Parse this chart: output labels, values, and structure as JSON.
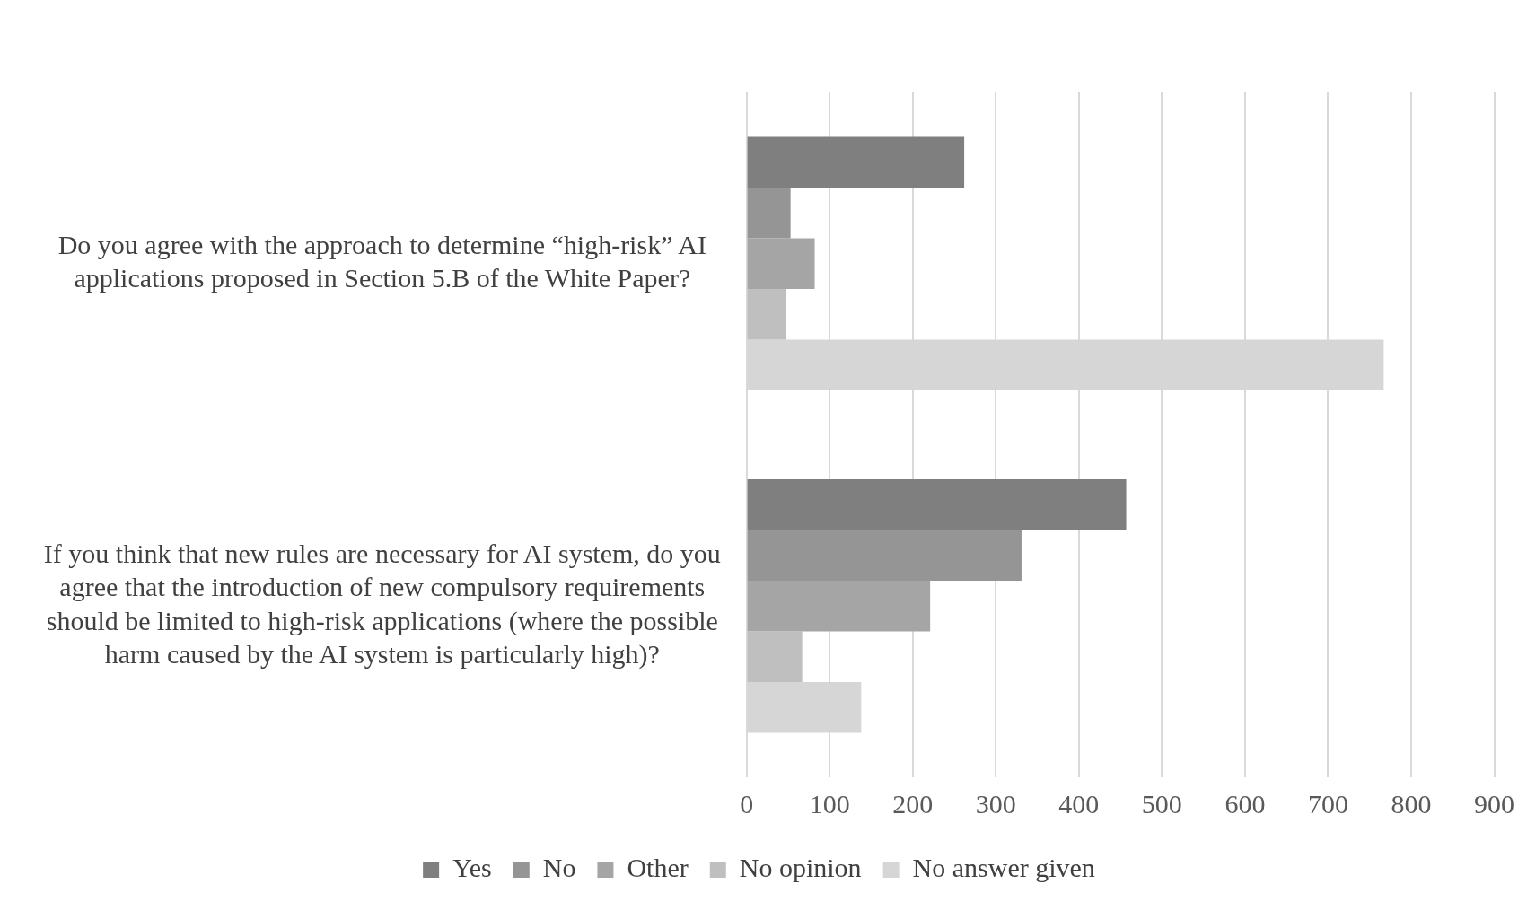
{
  "chart_data": {
    "type": "bar",
    "orientation": "horizontal",
    "categories": [
      "Do you agree with the approach to determine “high-risk” AI applications proposed in Section 5.B of the White Paper?",
      "If you think that new rules are necessary for AI system, do you agree that the introduction of new compulsory requirements should be limited to high-risk applications (where the possible harm caused by the AI system is particularly high)?"
    ],
    "series": [
      {
        "name": "Yes",
        "color": "#7f7f7f",
        "values": [
          262,
          457
        ]
      },
      {
        "name": "No",
        "color": "#959595",
        "values": [
          53,
          331
        ]
      },
      {
        "name": "Other",
        "color": "#a5a5a5",
        "values": [
          82,
          221
        ]
      },
      {
        "name": "No opinion",
        "color": "#bfbfbf",
        "values": [
          48,
          67
        ]
      },
      {
        "name": "No answer given",
        "color": "#d6d6d6",
        "values": [
          767,
          138
        ]
      }
    ],
    "xlim": [
      0,
      900
    ],
    "xticks": [
      0,
      100,
      200,
      300,
      400,
      500,
      600,
      700,
      800,
      900
    ],
    "grid": "x",
    "legend": "bottom"
  }
}
